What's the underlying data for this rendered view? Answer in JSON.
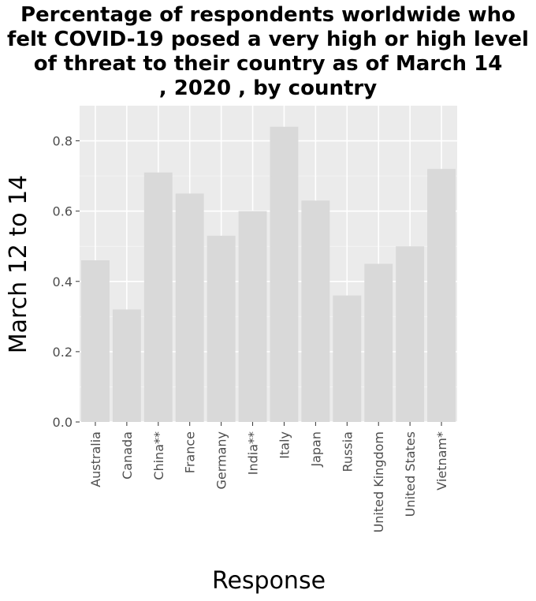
{
  "chart_data": {
    "type": "bar",
    "title_lines": [
      "Percentage of respondents worldwide who",
      "felt COVID-19 posed a very high or high level",
      "of threat to their country as of March 14",
      ", 2020 , by country"
    ],
    "xlabel": "Response",
    "ylabel": "March 12 to 14",
    "categories": [
      "Australia",
      "Canada",
      "China**",
      "France",
      "Germany",
      "India**",
      "Italy",
      "Japan",
      "Russia",
      "United Kingdom",
      "United States",
      "Vietnam*"
    ],
    "values": [
      0.46,
      0.32,
      0.71,
      0.65,
      0.53,
      0.6,
      0.84,
      0.63,
      0.36,
      0.45,
      0.5,
      0.72
    ],
    "ylim": [
      0,
      0.9
    ],
    "yticks": [
      0.0,
      0.2,
      0.4,
      0.6,
      0.8
    ],
    "ytick_labels": [
      "0.0",
      "0.2",
      "0.4",
      "0.6",
      "0.8"
    ],
    "grid": true,
    "colors": {
      "bar": "#d9d9d9",
      "panel": "#ebebeb",
      "grid_major": "#ffffff",
      "tick_text": "#4d4d4d"
    }
  }
}
